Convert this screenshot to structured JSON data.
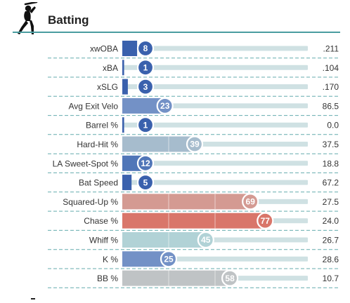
{
  "section": {
    "title": "Batting",
    "icon": "batter-icon"
  },
  "colors": {
    "rule": "#4a9da0",
    "track": "#cfe1e3",
    "dash": "#4a9da0",
    "label": "#333333",
    "value": "#333333"
  },
  "chart_data": {
    "type": "bar",
    "orientation": "horizontal",
    "scale": "percentile",
    "xlim": [
      0,
      100
    ],
    "metrics": [
      {
        "label": "xwOBA",
        "percentile": 8,
        "value": ".211",
        "color": "#3a61ad"
      },
      {
        "label": "xBA",
        "percentile": 1,
        "value": ".104",
        "color": "#3a61ad"
      },
      {
        "label": "xSLG",
        "percentile": 3,
        "value": ".170",
        "color": "#3a61ad"
      },
      {
        "label": "Avg Exit Velo",
        "percentile": 23,
        "value": "86.5",
        "color": "#7391c6"
      },
      {
        "label": "Barrel %",
        "percentile": 1,
        "value": "0.0",
        "color": "#3a61ad"
      },
      {
        "label": "Hard-Hit %",
        "percentile": 39,
        "value": "37.5",
        "color": "#a6bccd"
      },
      {
        "label": "LA Sweet-Spot %",
        "percentile": 12,
        "value": "18.8",
        "color": "#5076b8"
      },
      {
        "label": "Bat Speed",
        "percentile": 5,
        "value": "67.2",
        "color": "#3a61ad"
      },
      {
        "label": "Squared-Up %",
        "percentile": 69,
        "value": "27.5",
        "color": "#d49a92"
      },
      {
        "label": "Chase %",
        "percentile": 77,
        "value": "24.0",
        "color": "#d9766a"
      },
      {
        "label": "Whiff %",
        "percentile": 45,
        "value": "26.7",
        "color": "#b1d2d6"
      },
      {
        "label": "K %",
        "percentile": 25,
        "value": "28.6",
        "color": "#7391c6"
      },
      {
        "label": "BB %",
        "percentile": 58,
        "value": "10.7",
        "color": "#bfc3c5"
      }
    ]
  }
}
